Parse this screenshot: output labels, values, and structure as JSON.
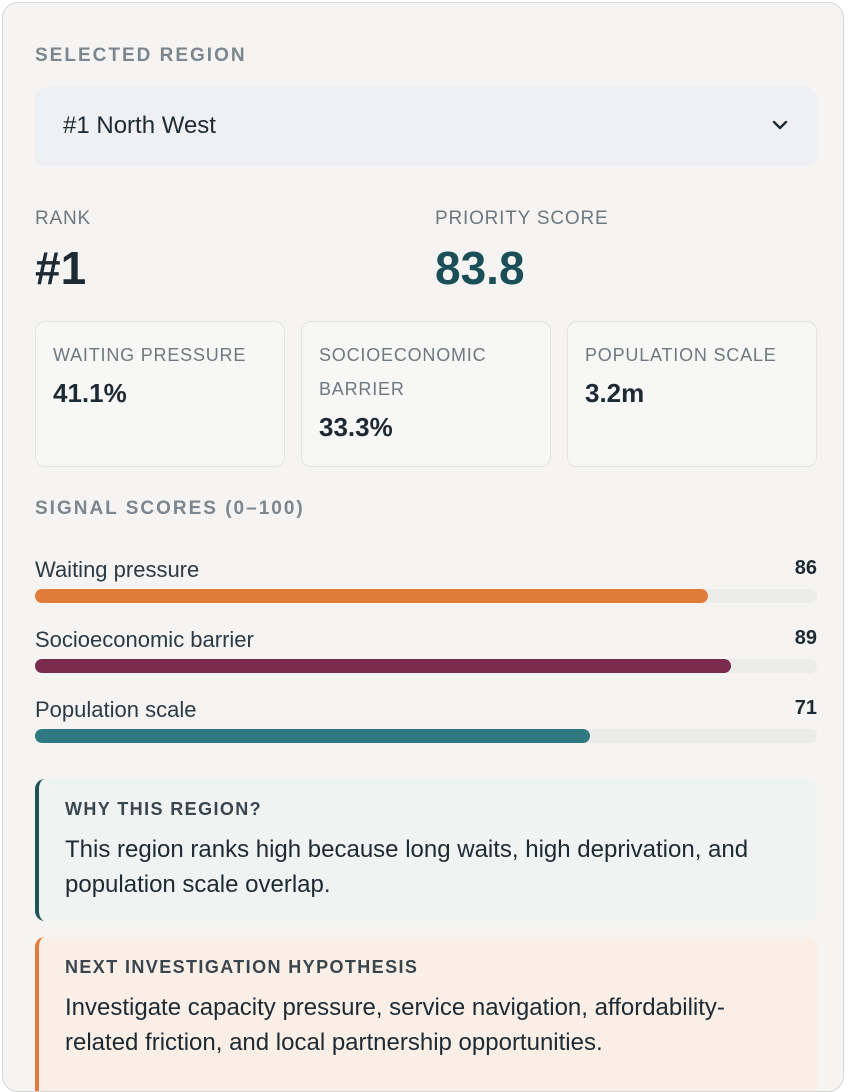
{
  "selected_region": {
    "label": "SELECTED REGION",
    "value": "#1 North West"
  },
  "rank": {
    "label": "RANK",
    "value": "#1"
  },
  "priority_score": {
    "label": "PRIORITY SCORE",
    "value": "83.8"
  },
  "metric_cards": [
    {
      "label": "WAITING PRESSURE",
      "value": "41.1%"
    },
    {
      "label": "SOCIOECONOMIC BARRIER",
      "value": "33.3%"
    },
    {
      "label": "POPULATION SCALE",
      "value": "3.2m"
    }
  ],
  "signal_scores": {
    "label": "SIGNAL SCORES (0–100)",
    "max": 100,
    "items": [
      {
        "name": "Waiting pressure",
        "score": 86,
        "score_text": "86",
        "color": "#e07b39"
      },
      {
        "name": "Socioeconomic barrier",
        "score": 89,
        "score_text": "89",
        "color": "#7a2a4d"
      },
      {
        "name": "Population scale",
        "score": 71,
        "score_text": "71",
        "color": "#2f7a80"
      }
    ]
  },
  "why": {
    "title": "WHY THIS REGION?",
    "body": "This region ranks high because long waits, high deprivation, and population scale overlap.",
    "accent": "#1f5358",
    "background": "#eff3f2"
  },
  "hypothesis": {
    "title": "NEXT INVESTIGATION HYPOTHESIS",
    "body": "Investigate capacity pressure, service navigation, affordability-related friction, and local partnership opportunities.",
    "accent": "#e07b39",
    "background": "#f9efe6"
  },
  "colors": {
    "priority_score": "#1b4f57",
    "rank": "#1e2a33"
  },
  "icons": {
    "dropdown": "chevron-down-icon"
  }
}
